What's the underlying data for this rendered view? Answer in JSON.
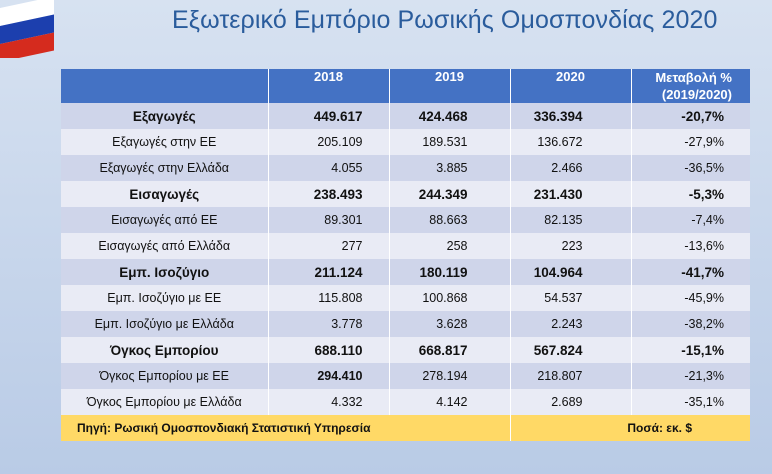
{
  "title": "Εξωτερικό Εμπόριο Ρωσικής Ομοσπονδίας 2020",
  "flag": {
    "colors": [
      "#ffffff",
      "#1c3fae",
      "#d52b1e"
    ]
  },
  "table": {
    "headers": {
      "label": "",
      "y2018": "2018",
      "y2019": "2019",
      "y2020": "2020",
      "change_line1": "Μεταβολή %",
      "change_line2": "(2019/2020)"
    },
    "rows": [
      {
        "label": "Εξαγωγές",
        "v2018": "449.617",
        "v2019": "424.468",
        "v2020": "336.394",
        "change": "-20,7%"
      },
      {
        "label": "Εξαγωγές στην ΕΕ",
        "v2018": "205.109",
        "v2019": "189.531",
        "v2020": "136.672",
        "change": "-27,9%"
      },
      {
        "label": "Εξαγωγές στην Ελλάδα",
        "v2018": "4.055",
        "v2019": "3.885",
        "v2020": "2.466",
        "change": "-36,5%"
      },
      {
        "label": "Εισαγωγές",
        "v2018": "238.493",
        "v2019": "244.349",
        "v2020": "231.430",
        "change": "-5,3%"
      },
      {
        "label": "Εισαγωγές από ΕΕ",
        "v2018": "89.301",
        "v2019": "88.663",
        "v2020": "82.135",
        "change": "-7,4%"
      },
      {
        "label": "Εισαγωγές από Ελλάδα",
        "v2018": "277",
        "v2019": "258",
        "v2020": "223",
        "change": "-13,6%"
      },
      {
        "label": "Εμπ. Ισοζύγιο",
        "v2018": "211.124",
        "v2019": "180.119",
        "v2020": "104.964",
        "change": "-41,7%"
      },
      {
        "label": "Εμπ. Ισοζύγιο με ΕΕ",
        "v2018": "115.808",
        "v2019": "100.868",
        "v2020": "54.537",
        "change": "-45,9%"
      },
      {
        "label": "Εμπ. Ισοζύγιο με Ελλάδα",
        "v2018": "3.778",
        "v2019": "3.628",
        "v2020": "2.243",
        "change": "-38,2%"
      },
      {
        "label": "Όγκος Εμπορίου",
        "v2018": "688.110",
        "v2019": "668.817",
        "v2020": "567.824",
        "change": "-15,1%"
      },
      {
        "label": "Όγκος Εμπορίου με ΕΕ",
        "v2018": "294.410",
        "v2019": "278.194",
        "v2020": "218.807",
        "change": "-21,3%"
      },
      {
        "label": "Όγκος Εμπορίου με Ελλάδα",
        "v2018": "4.332",
        "v2019": "4.142",
        "v2020": "2.689",
        "change": "-35,1%"
      }
    ],
    "footer": {
      "source": "Πηγή: Ρωσική Ομοσπονδιακή Στατιστική Υπηρεσία",
      "unit": "Ποσά: εκ. $"
    }
  }
}
